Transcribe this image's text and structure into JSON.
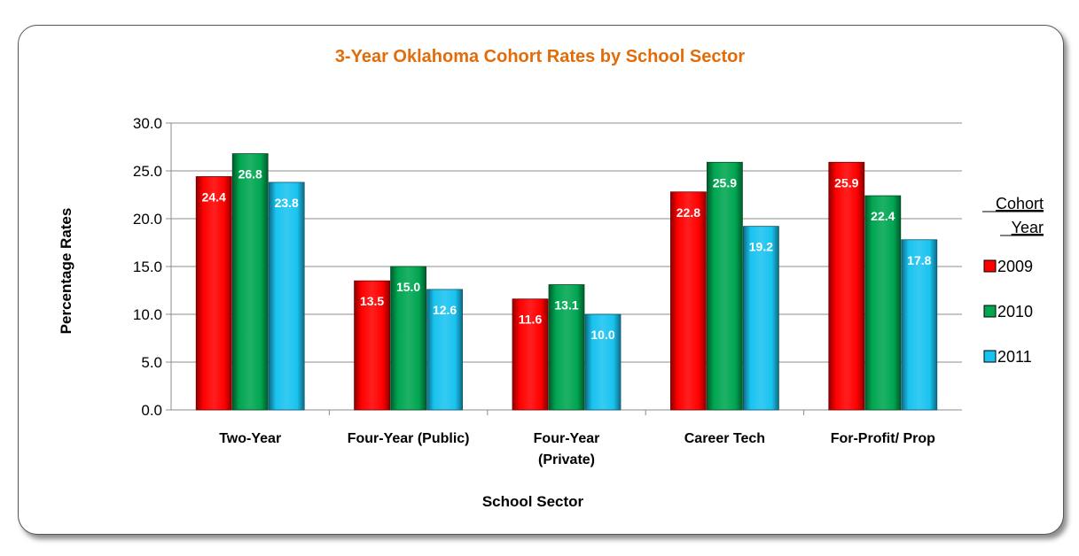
{
  "chart_data": {
    "type": "bar",
    "title": "3-Year Oklahoma Cohort Rates by School Sector",
    "xlabel": "School Sector",
    "ylabel": "Percentage Rates",
    "ylim": [
      0,
      30
    ],
    "yticks": [
      "0.0",
      "5.0",
      "10.0",
      "15.0",
      "20.0",
      "25.0",
      "30.0"
    ],
    "grid": true,
    "legend_title": [
      "Cohort",
      "Year"
    ],
    "legend_position": "right",
    "categories": [
      [
        "Two-Year"
      ],
      [
        "Four-Year (Public)"
      ],
      [
        "Four-Year",
        "(Private)"
      ],
      [
        "Career Tech"
      ],
      [
        "For-Profit/ Prop"
      ]
    ],
    "series": [
      {
        "name": "2009",
        "color": "#FF0000",
        "values": [
          24.4,
          13.5,
          11.6,
          22.8,
          25.9
        ]
      },
      {
        "name": "2010",
        "color": "#00A651",
        "values": [
          26.8,
          15.0,
          13.1,
          25.9,
          22.4
        ]
      },
      {
        "name": "2011",
        "color": "#19C3F0",
        "values": [
          23.8,
          12.6,
          10.0,
          19.2,
          17.8
        ]
      }
    ]
  }
}
